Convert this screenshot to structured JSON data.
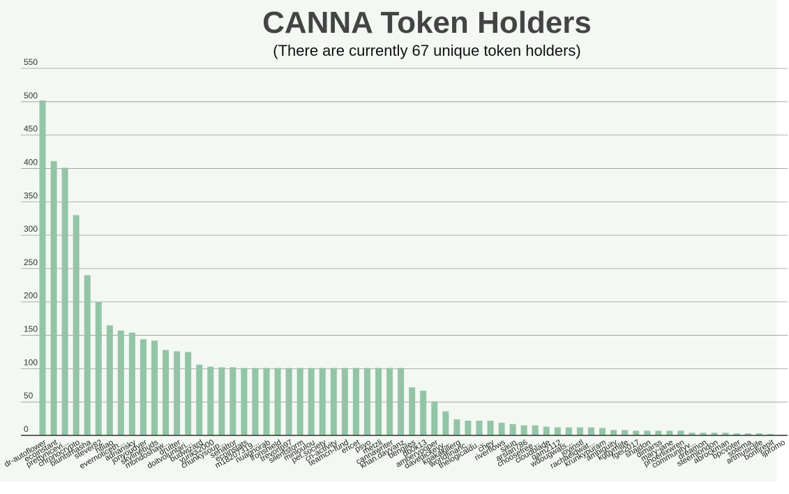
{
  "chart_data": {
    "type": "bar",
    "title": "CANNA Token Holders",
    "subtitle": "(There are currently 67 unique token holders)",
    "xlabel": "",
    "ylabel": "",
    "ylim": [
      0,
      550
    ],
    "yticks": [
      0,
      50,
      100,
      150,
      200,
      250,
      300,
      350,
      400,
      450,
      500,
      550
    ],
    "grid": true,
    "legend": "none",
    "bar_color": "#93c4a6",
    "background": "#f3f8f3",
    "grid_color": "#999999",
    "categories": [
      "dr-autoflower",
      "ecoinstant",
      "prettynicevi...",
      "chronocrypto",
      "bluntsmasha",
      "stever82",
      "htliao",
      "evernoticeth...",
      "adriansky",
      "jonyoudyer",
      "skylinebuds",
      "mondoshaw...",
      "drutter",
      "doitvoluntari...",
      "budwizard",
      "yuriks2000",
      "chunkysoup...",
      "senattor",
      "ecoinstats",
      "m18207319...",
      "nuagnorab",
      "ironshield",
      "trevorlp97",
      "silentstorm",
      "minloulou",
      "pet.society",
      "cn-activity",
      "teamcn-fund",
      "ericet",
      "psyo",
      "metzli",
      "cannawriter",
      "khan.dayyanz",
      "bengiles",
      "db0k13",
      "amberyooper",
      "davedickeyy...",
      "kgakakillerg",
      "worldfinanc...",
      "thelogicaldu...",
      "chey",
      "riverflows",
      "saun",
      "arslan786",
      "choosefree...",
      "cloudblade",
      "qam2112",
      "wdougwats...",
      "joyinstl",
      "rachaeldwat...",
      "krunkypuram",
      "ambiguity",
      "kggymlife",
      "fgel2017",
      "shaidon",
      "dimarss",
      "mary-jane",
      "phoenixwren",
      "communityv...",
      "dreamon",
      "steemlondon",
      "abrockman",
      "bpcvoter",
      "sotema",
      "artmusiclife",
      "bonfirepit",
      "ljpromo"
    ],
    "values": [
      502,
      411,
      401,
      330,
      240,
      200,
      165,
      157,
      154,
      144,
      142,
      128,
      126,
      125,
      106,
      103,
      102,
      102,
      101,
      101,
      101,
      101,
      101,
      101,
      101,
      101,
      101,
      101,
      101,
      101,
      101,
      101,
      101,
      72,
      67,
      51,
      36,
      24,
      22,
      22,
      22,
      19,
      17,
      15,
      15,
      13,
      12,
      12,
      12,
      12,
      11,
      8,
      8,
      7,
      7,
      7,
      7,
      7,
      4,
      4,
      4,
      4,
      3,
      3,
      3,
      2,
      1
    ]
  }
}
